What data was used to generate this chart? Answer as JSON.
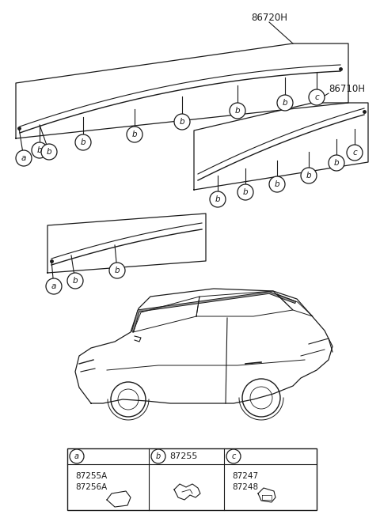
{
  "bg_color": "#ffffff",
  "line_color": "#1a1a1a",
  "label_86720H": "86720H",
  "label_86710H": "86710H",
  "part_a_codes": "87255A\n87256A",
  "part_b_code": "87255",
  "part_c_codes": "87247\n87248",
  "fig_width": 4.8,
  "fig_height": 6.55,
  "dpi": 100
}
